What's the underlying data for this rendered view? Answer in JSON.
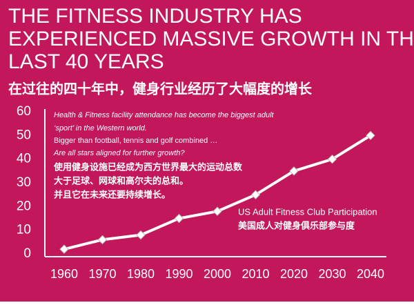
{
  "chart_data": {
    "type": "line",
    "title": [
      "THE FITNESS INDUSTRY HAS",
      "EXPERIENCED MASSIVE GROWTH IN THE",
      "LAST 40 YEARS"
    ],
    "subtitle": "在过往的四十年中，健身行业经历了大幅度的增长",
    "annotations": [
      {
        "text": "Health & Fitness facility attendance has become the biggest adult",
        "style": "italic"
      },
      {
        "text": "‘sport’ in the Western world.",
        "style": "italic"
      },
      {
        "text": "Bigger than football, tennis and golf combined …",
        "style": "normal"
      },
      {
        "text": "Are all stars aligned for further growth?",
        "style": "italic"
      },
      {
        "text": "使用健身设施已经成为西方世界最大的运动总数",
        "style": "bold"
      },
      {
        "text": "大于足球、网球和高尔夫的总和。",
        "style": "bold"
      },
      {
        "text": "并且它在未来还要持续增长。",
        "style": "bold"
      }
    ],
    "categories": [
      "1960",
      "1970",
      "1980",
      "1990",
      "2000",
      "2010",
      "2020",
      "2030",
      "2040"
    ],
    "series": [
      {
        "name": "US Adult Fitness Club Participation",
        "name_cn": "美国成人对健身俱乐部参与度",
        "color": "#ffffff",
        "values": [
          2,
          6,
          8,
          15,
          18,
          25,
          35,
          40,
          50
        ]
      }
    ],
    "ylim": [
      0,
      60
    ],
    "yticks": [
      0,
      10,
      20,
      30,
      40,
      50,
      60
    ],
    "grid": false,
    "background": "#c2185b"
  }
}
